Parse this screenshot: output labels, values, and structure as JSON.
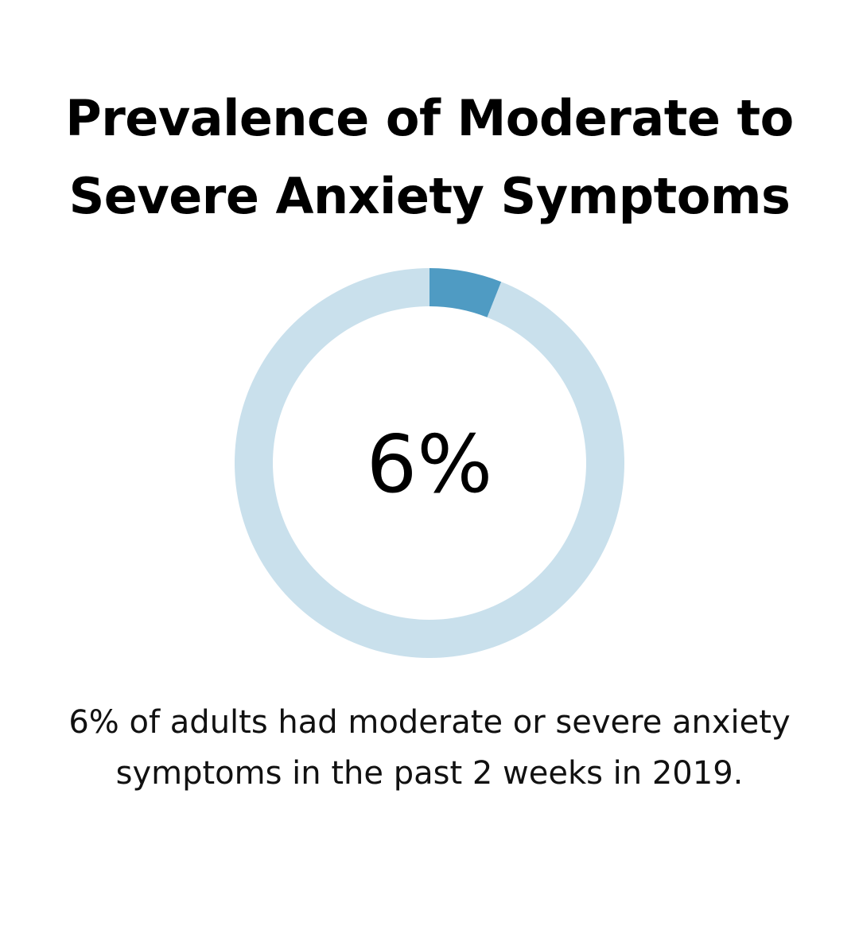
{
  "title": "Prevalence of Moderate to Severe Anxiety Symptoms",
  "caption": "6% of adults had moderate or severe anxiety symptoms in the past 2 weeks in 2019.",
  "chart_data": {
    "type": "pie",
    "style": "donut",
    "center_label": "6%",
    "slices": [
      {
        "value": 6,
        "color": "#4f9bc3"
      },
      {
        "value": 94,
        "color": "#c9e0ec"
      }
    ],
    "legend": "none"
  }
}
